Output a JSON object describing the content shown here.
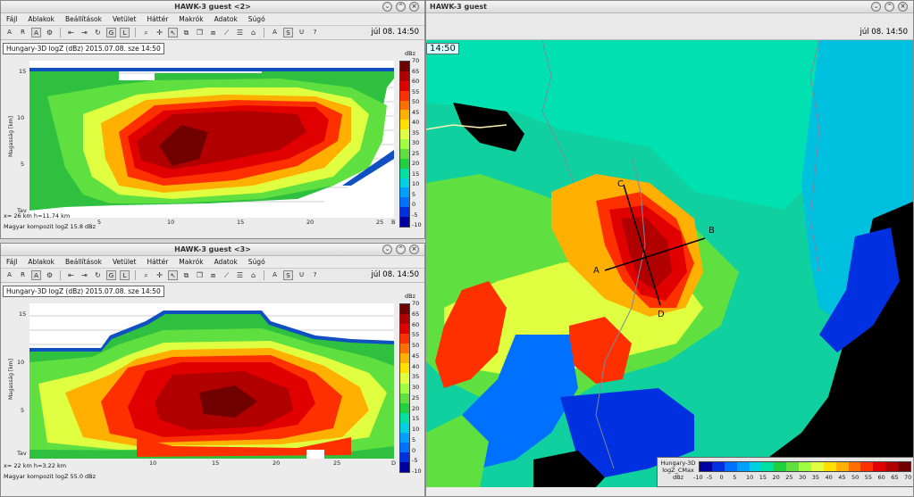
{
  "windows": {
    "main": {
      "title": "HAWK-3   guest",
      "clock_partial": "14:50",
      "clock": "júl 08. 14:50",
      "labels": {
        "a": "A",
        "b": "B",
        "c": "C",
        "d": "D"
      },
      "legend": {
        "title_lines": [
          "Hungary-3D",
          "logZ_CMax",
          "dBz"
        ],
        "ticks": [
          "-10",
          "-5",
          "0",
          "5",
          "10",
          "15",
          "20",
          "25",
          "30",
          "35",
          "40",
          "45",
          "50",
          "55",
          "60",
          "65",
          "70"
        ]
      }
    },
    "top": {
      "title": "HAWK-3   guest <2>",
      "menu": [
        "Fájl",
        "Ablakok",
        "Beállítások",
        "Vetület",
        "Háttér",
        "Makrók",
        "Adatok",
        "Súgó"
      ],
      "toolbar": [
        "A",
        "R",
        "A",
        "⊗"
      ],
      "clock": "júl 08. 14:50",
      "plot_title": "Hungary-3D logZ (dBz) 2015.07.08. sze 14:50",
      "yaxis": "Magasság [km]",
      "yticks": [
        "15",
        "10",
        "5",
        "Tav"
      ],
      "xticks": [
        "5",
        "10",
        "15",
        "20",
        "25"
      ],
      "xaxis_end": "B",
      "info1": "x= 26 km h=11.74 km",
      "info2": "Magyar kompozit logZ   15.8 dBz",
      "cbar_unit": "dBz",
      "cbar_ticks": [
        "70",
        "65",
        "60",
        "55",
        "50",
        "45",
        "40",
        "35",
        "30",
        "25",
        "20",
        "15",
        "10",
        "5",
        "0",
        "-5",
        "-10"
      ]
    },
    "bottom": {
      "title": "HAWK-3   guest <3>",
      "menu": [
        "Fájl",
        "Ablakok",
        "Beállítások",
        "Vetület",
        "Háttér",
        "Makrók",
        "Adatok",
        "Súgó"
      ],
      "clock": "júl 08. 14:50",
      "plot_title": "Hungary-3D logZ (dBz) 2015.07.08. sze 14:50",
      "yaxis": "Magasság [km]",
      "yticks": [
        "15",
        "10",
        "5",
        "Tav"
      ],
      "xticks": [
        "10",
        "15",
        "20",
        "25"
      ],
      "xaxis_end": "D",
      "info1": "x= 22 km h=3.22 km",
      "info2": "Magyar kompozit logZ   55.0 dBz",
      "cbar_unit": "dBz",
      "cbar_ticks": [
        "70",
        "65",
        "60",
        "55",
        "50",
        "45",
        "40",
        "35",
        "30",
        "25",
        "20",
        "15",
        "10",
        "5",
        "0",
        "-5",
        "-10"
      ]
    }
  },
  "colors": {
    "scale": [
      "#0000a0",
      "#0030e0",
      "#0070ff",
      "#00a0ff",
      "#00d0e0",
      "#00e0a0",
      "#20d040",
      "#60e040",
      "#a0ff40",
      "#e0ff40",
      "#ffe000",
      "#ffb000",
      "#ff7000",
      "#ff3000",
      "#e00000",
      "#b00000",
      "#700000"
    ]
  }
}
